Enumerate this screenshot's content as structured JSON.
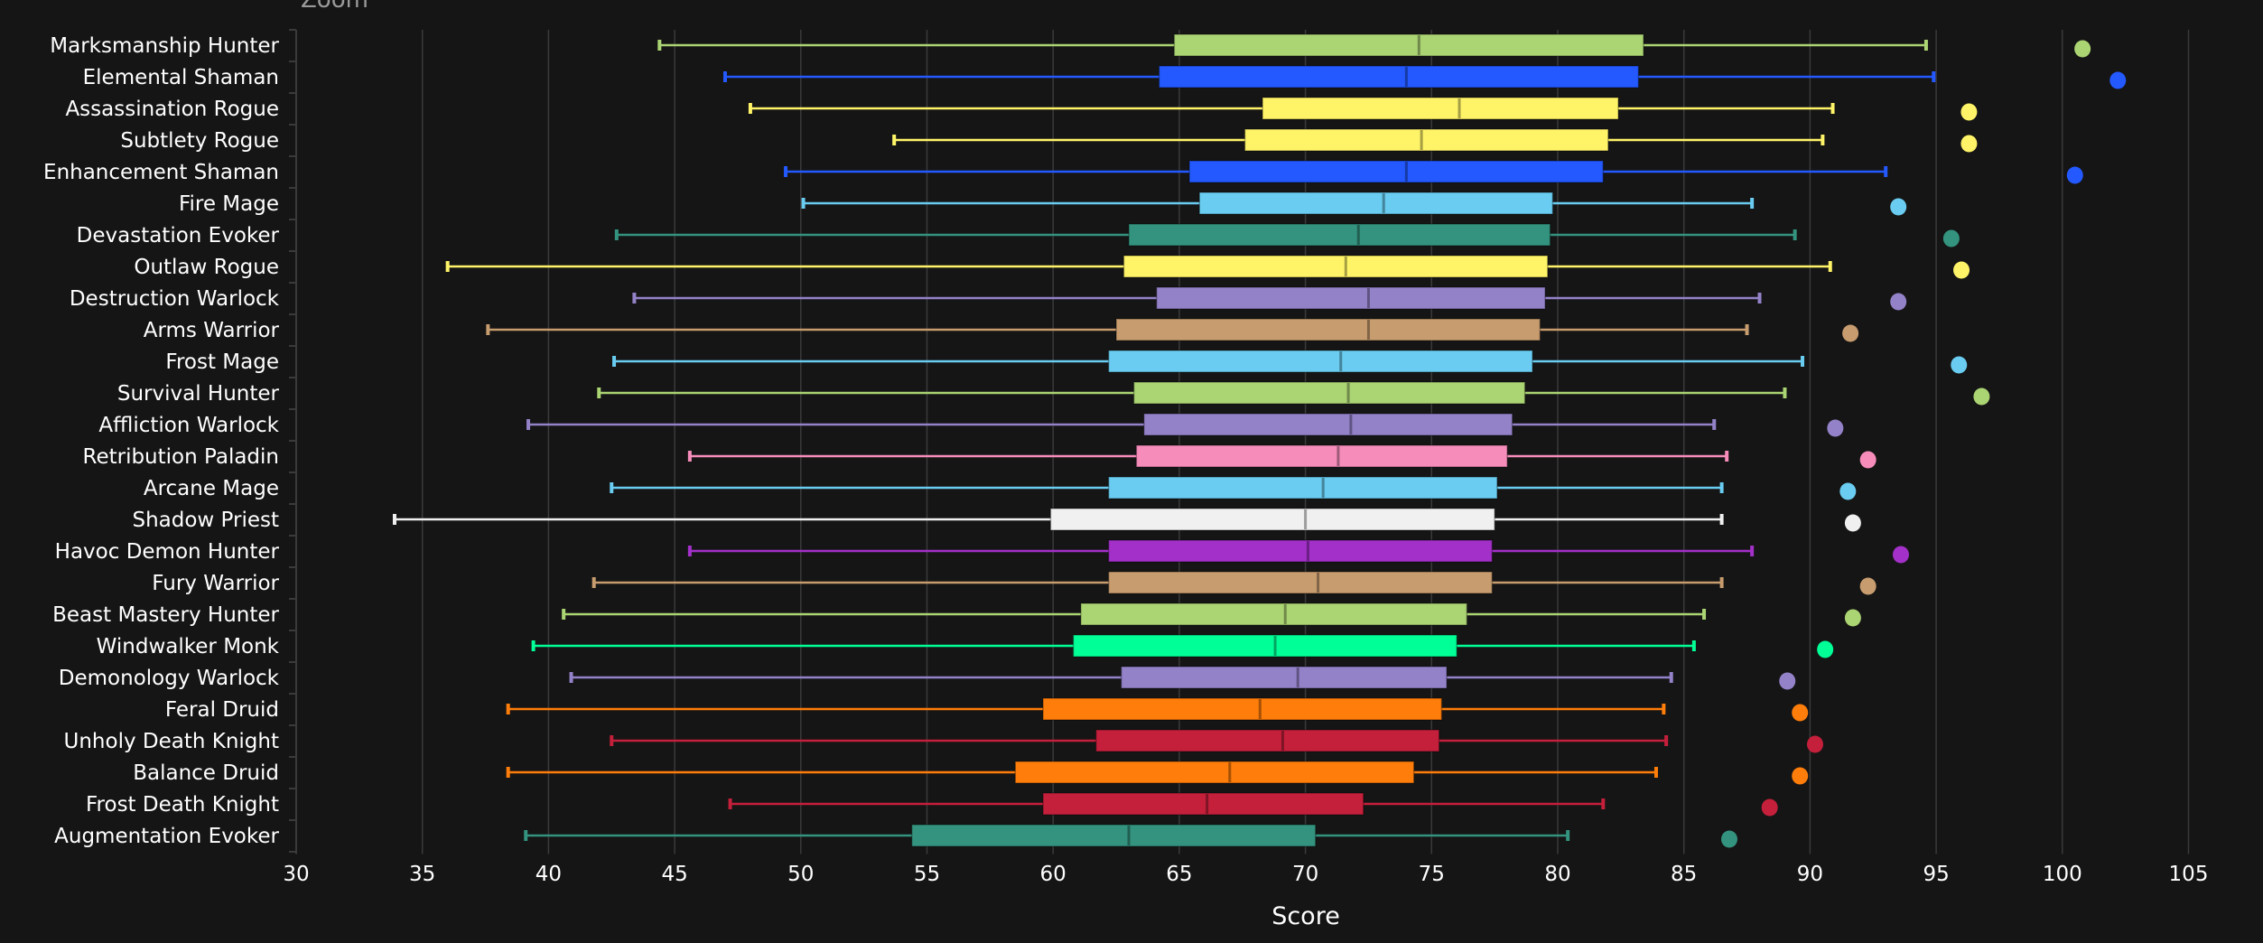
{
  "chart_data": {
    "type": "boxplot",
    "title_partial": "Zoom",
    "xlabel": "Score",
    "ylabel": "",
    "xlim": [
      30,
      106
    ],
    "xticks": [
      30,
      35,
      40,
      45,
      50,
      55,
      60,
      65,
      70,
      75,
      80,
      85,
      90,
      95,
      100,
      105
    ],
    "grid": "vertical",
    "orientation": "horizontal",
    "series": [
      {
        "name": "Marksmanship Hunter",
        "color": "#abd473",
        "min": 44.4,
        "q1": 64.8,
        "median": 74.5,
        "q3": 83.4,
        "max": 94.6,
        "outlier": 100.8
      },
      {
        "name": "Elemental Shaman",
        "color": "#2359ff",
        "min": 47.0,
        "q1": 64.2,
        "median": 74.0,
        "q3": 83.2,
        "max": 94.9,
        "outlier": 102.2
      },
      {
        "name": "Assassination Rogue",
        "color": "#fff468",
        "min": 48.0,
        "q1": 68.3,
        "median": 76.1,
        "q3": 82.4,
        "max": 90.9,
        "outlier": 96.3
      },
      {
        "name": "Subtlety Rogue",
        "color": "#fff468",
        "min": 53.7,
        "q1": 67.6,
        "median": 74.6,
        "q3": 82.0,
        "max": 90.5,
        "outlier": 96.3
      },
      {
        "name": "Enhancement Shaman",
        "color": "#2359ff",
        "min": 49.4,
        "q1": 65.4,
        "median": 74.0,
        "q3": 81.8,
        "max": 93.0,
        "outlier": 100.5
      },
      {
        "name": "Fire Mage",
        "color": "#69ccf0",
        "min": 50.1,
        "q1": 65.8,
        "median": 73.1,
        "q3": 79.8,
        "max": 87.7,
        "outlier": 93.5
      },
      {
        "name": "Devastation Evoker",
        "color": "#33937f",
        "min": 42.7,
        "q1": 63.0,
        "median": 72.1,
        "q3": 79.7,
        "max": 89.4,
        "outlier": 95.6
      },
      {
        "name": "Outlaw Rogue",
        "color": "#fff468",
        "min": 36.0,
        "q1": 62.8,
        "median": 71.6,
        "q3": 79.6,
        "max": 90.8,
        "outlier": 96.0
      },
      {
        "name": "Destruction Warlock",
        "color": "#9482c9",
        "min": 43.4,
        "q1": 64.1,
        "median": 72.5,
        "q3": 79.5,
        "max": 88.0,
        "outlier": 93.5
      },
      {
        "name": "Arms Warrior",
        "color": "#c79c6e",
        "min": 37.6,
        "q1": 62.5,
        "median": 72.5,
        "q3": 79.3,
        "max": 87.5,
        "outlier": 91.6
      },
      {
        "name": "Frost Mage",
        "color": "#69ccf0",
        "min": 42.6,
        "q1": 62.2,
        "median": 71.4,
        "q3": 79.0,
        "max": 89.7,
        "outlier": 95.9
      },
      {
        "name": "Survival Hunter",
        "color": "#abd473",
        "min": 42.0,
        "q1": 63.2,
        "median": 71.7,
        "q3": 78.7,
        "max": 89.0,
        "outlier": 96.8
      },
      {
        "name": "Affliction Warlock",
        "color": "#9482c9",
        "min": 39.2,
        "q1": 63.6,
        "median": 71.8,
        "q3": 78.2,
        "max": 86.2,
        "outlier": 91.0
      },
      {
        "name": "Retribution Paladin",
        "color": "#f58cba",
        "min": 45.6,
        "q1": 63.3,
        "median": 71.3,
        "q3": 78.0,
        "max": 86.7,
        "outlier": 92.3
      },
      {
        "name": "Arcane Mage",
        "color": "#69ccf0",
        "min": 42.5,
        "q1": 62.2,
        "median": 70.7,
        "q3": 77.6,
        "max": 86.5,
        "outlier": 91.5
      },
      {
        "name": "Shadow Priest",
        "color": "#f0f0f0",
        "min": 33.9,
        "q1": 59.9,
        "median": 70.0,
        "q3": 77.5,
        "max": 86.5,
        "outlier": 91.7
      },
      {
        "name": "Havoc Demon Hunter",
        "color": "#a330c9",
        "min": 45.6,
        "q1": 62.2,
        "median": 70.1,
        "q3": 77.4,
        "max": 87.7,
        "outlier": 93.6
      },
      {
        "name": "Fury Warrior",
        "color": "#c79c6e",
        "min": 41.8,
        "q1": 62.2,
        "median": 70.5,
        "q3": 77.4,
        "max": 86.5,
        "outlier": 92.3
      },
      {
        "name": "Beast Mastery Hunter",
        "color": "#abd473",
        "min": 40.6,
        "q1": 61.1,
        "median": 69.2,
        "q3": 76.4,
        "max": 85.8,
        "outlier": 91.7
      },
      {
        "name": "Windwalker Monk",
        "color": "#00ff96",
        "min": 39.4,
        "q1": 60.8,
        "median": 68.8,
        "q3": 76.0,
        "max": 85.4,
        "outlier": 90.6
      },
      {
        "name": "Demonology Warlock",
        "color": "#9482c9",
        "min": 40.9,
        "q1": 62.7,
        "median": 69.7,
        "q3": 75.6,
        "max": 84.5,
        "outlier": 89.1
      },
      {
        "name": "Feral Druid",
        "color": "#ff7d0a",
        "min": 38.4,
        "q1": 59.6,
        "median": 68.2,
        "q3": 75.4,
        "max": 84.2,
        "outlier": 89.6
      },
      {
        "name": "Unholy Death Knight",
        "color": "#c41f3b",
        "min": 42.5,
        "q1": 61.7,
        "median": 69.1,
        "q3": 75.3,
        "max": 84.3,
        "outlier": 90.2
      },
      {
        "name": "Balance Druid",
        "color": "#ff7d0a",
        "min": 38.4,
        "q1": 58.5,
        "median": 67.0,
        "q3": 74.3,
        "max": 83.9,
        "outlier": 89.6
      },
      {
        "name": "Frost Death Knight",
        "color": "#c41f3b",
        "min": 47.2,
        "q1": 59.6,
        "median": 66.1,
        "q3": 72.3,
        "max": 81.8,
        "outlier": 88.4
      },
      {
        "name": "Augmentation Evoker",
        "color": "#33937f",
        "min": 39.1,
        "q1": 54.4,
        "median": 63.0,
        "q3": 70.4,
        "max": 80.4,
        "outlier": 86.8
      }
    ]
  }
}
